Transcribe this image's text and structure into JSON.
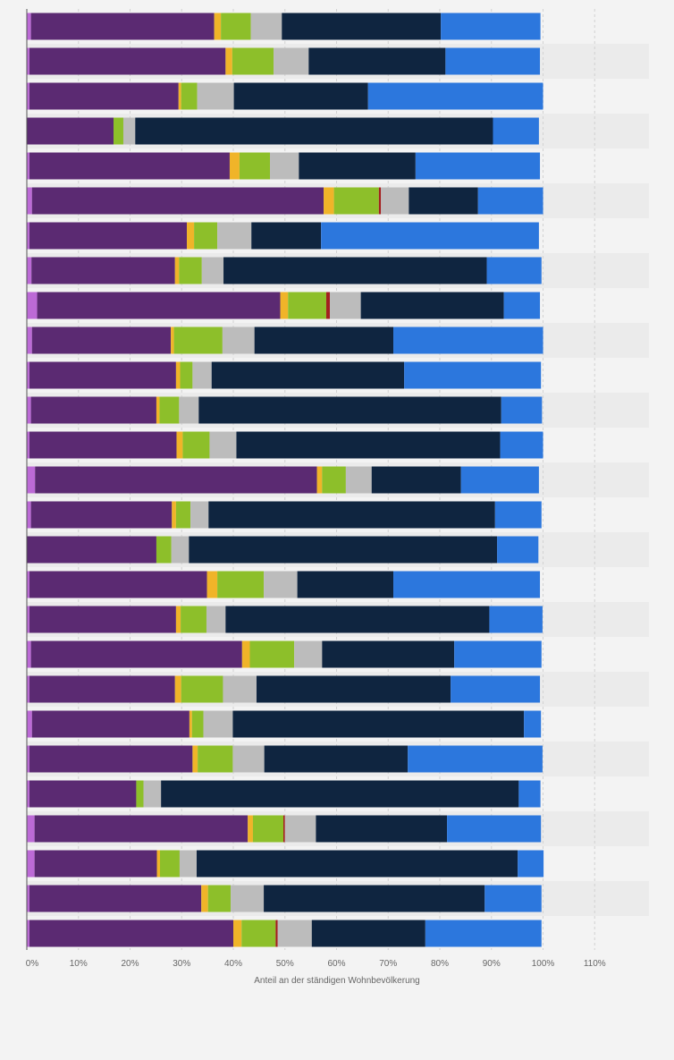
{
  "chart_data": {
    "type": "bar",
    "orientation": "horizontal",
    "stacked": true,
    "xlabel": "Anteil an der ständigen Wohnbevölkerung",
    "xlim": [
      0,
      120
    ],
    "x_ticks": [
      0,
      10,
      20,
      30,
      40,
      50,
      60,
      70,
      80,
      90,
      100,
      110
    ],
    "x_tick_labels": [
      "0%",
      "10%",
      "20%",
      "30%",
      "40%",
      "50%",
      "60%",
      "70%",
      "80%",
      "90%",
      "100%",
      "110%"
    ],
    "grid": true,
    "legend": "none",
    "colors": [
      "#bc6ad6",
      "#5b2a72",
      "#f0b429",
      "#8dbf2a",
      "#a31f1f",
      "#bcbcbc",
      "#0f2540",
      "#2c77dd"
    ],
    "rows": [
      [
        0.8,
        35.5,
        1.3,
        5.8,
        0,
        6.0,
        30.8,
        19.3
      ],
      [
        0.5,
        38.0,
        1.3,
        8.0,
        0,
        6.8,
        26.5,
        18.3
      ],
      [
        0.5,
        28.9,
        0.5,
        3.1,
        0,
        7.1,
        26.0,
        33.9
      ],
      [
        0,
        16.8,
        0,
        1.9,
        0,
        2.3,
        69.3,
        8.9
      ],
      [
        0.5,
        38.8,
        1.9,
        5.9,
        0,
        5.6,
        22.6,
        24.1
      ],
      [
        1.0,
        56.5,
        2.0,
        8.7,
        0.4,
        5.4,
        13.4,
        12.6
      ],
      [
        0.5,
        30.5,
        1.4,
        4.5,
        0,
        6.6,
        13.5,
        42.2
      ],
      [
        0.9,
        27.8,
        0.8,
        4.4,
        0,
        4.2,
        51.0,
        10.6
      ],
      [
        2.0,
        47.1,
        1.5,
        7.4,
        0.7,
        6.0,
        27.7,
        7.0
      ],
      [
        1.0,
        26.9,
        0.6,
        9.4,
        0,
        6.2,
        26.9,
        29.0
      ],
      [
        0.5,
        28.4,
        0.8,
        2.4,
        0,
        3.7,
        37.3,
        26.5
      ],
      [
        0.8,
        24.3,
        0.6,
        3.8,
        0,
        3.8,
        58.6,
        7.9
      ],
      [
        0.5,
        28.5,
        1.2,
        5.2,
        0,
        5.2,
        51.1,
        8.3
      ],
      [
        1.6,
        54.6,
        1.0,
        4.6,
        0,
        5.0,
        17.3,
        15.1
      ],
      [
        0.8,
        27.3,
        0.8,
        2.8,
        0,
        3.5,
        55.5,
        9.0
      ],
      [
        0,
        25.1,
        0,
        2.9,
        0,
        3.4,
        59.7,
        8.0
      ],
      [
        0.5,
        34.4,
        2.0,
        9.0,
        0,
        6.5,
        18.6,
        28.4
      ],
      [
        0.5,
        28.4,
        0.9,
        5.0,
        0,
        3.7,
        51.1,
        10.3
      ],
      [
        0.8,
        40.9,
        1.5,
        8.6,
        0,
        5.4,
        25.6,
        16.9
      ],
      [
        0.5,
        28.2,
        1.2,
        8.1,
        0,
        6.5,
        37.6,
        17.3
      ],
      [
        1.0,
        30.5,
        0.5,
        2.2,
        0,
        5.7,
        56.4,
        3.3
      ],
      [
        0.5,
        31.6,
        1.0,
        6.8,
        0,
        6.1,
        27.8,
        26.1
      ],
      [
        0.5,
        20.7,
        0,
        1.4,
        0,
        3.4,
        69.3,
        4.2
      ],
      [
        1.5,
        41.3,
        1.0,
        5.9,
        0.3,
        6.0,
        25.4,
        18.2
      ],
      [
        1.5,
        23.7,
        0.6,
        3.8,
        0,
        3.3,
        62.2,
        5.0
      ],
      [
        0.5,
        33.3,
        1.3,
        4.4,
        0,
        6.4,
        42.8,
        11.0
      ],
      [
        0.5,
        39.5,
        1.6,
        6.6,
        0.4,
        6.6,
        22.0,
        22.5
      ]
    ]
  }
}
